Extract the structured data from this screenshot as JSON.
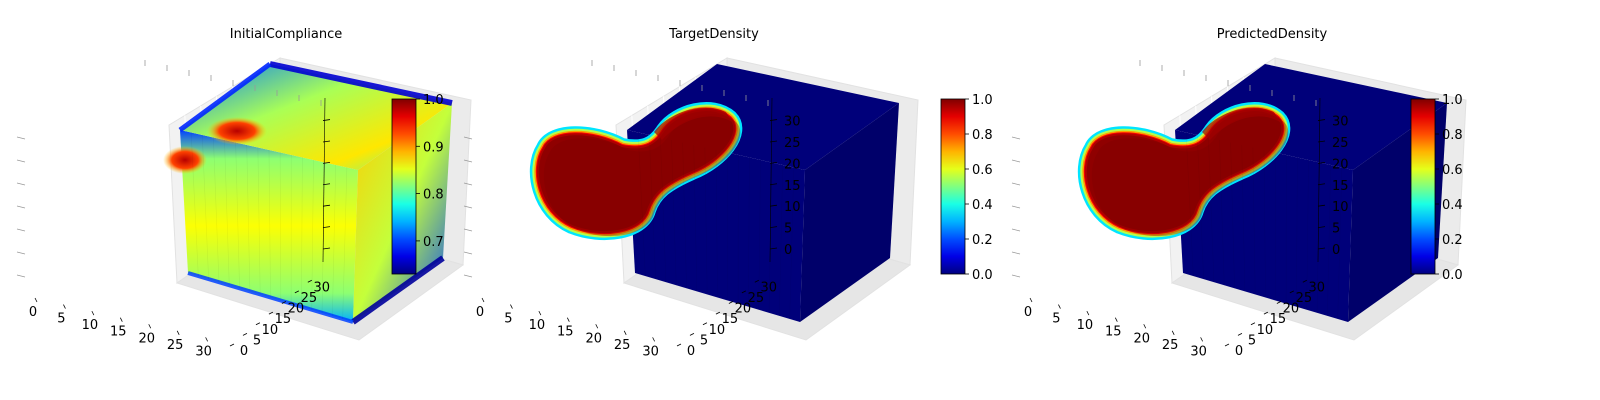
{
  "chart_data": [
    {
      "type": "voxel-cube",
      "title": "InitialCompliance",
      "field": "compliance",
      "axes": {
        "x_ticks": [
          "0",
          "5",
          "10",
          "15",
          "20",
          "25",
          "30"
        ],
        "y_ticks": [
          "0",
          "5",
          "10",
          "15",
          "20",
          "25",
          "30"
        ],
        "z_ticks": [],
        "range": [
          0,
          32
        ]
      },
      "colorbar": {
        "colormap": "jet",
        "min": 0.63,
        "max": 1.0,
        "ticks": [
          "0.7",
          "0.8",
          "0.9",
          "1.0"
        ],
        "tick_values": [
          0.7,
          0.8,
          0.9,
          1.0
        ]
      }
    },
    {
      "type": "voxel-cube",
      "title": "TargetDensity",
      "field": "density",
      "axes": {
        "x_ticks": [
          "0",
          "5",
          "10",
          "15",
          "20",
          "25",
          "30"
        ],
        "y_ticks": [
          "0",
          "5",
          "10",
          "15",
          "20",
          "25",
          "30"
        ],
        "z_ticks": [
          "0",
          "5",
          "10",
          "15",
          "20",
          "25",
          "30"
        ],
        "range": [
          0,
          32
        ]
      },
      "colorbar": {
        "colormap": "jet",
        "min": 0.0,
        "max": 1.0,
        "ticks": [
          "0.0",
          "0.2",
          "0.4",
          "0.6",
          "0.8",
          "1.0"
        ],
        "tick_values": [
          0.0,
          0.2,
          0.4,
          0.6,
          0.8,
          1.0
        ]
      }
    },
    {
      "type": "voxel-cube",
      "title": "PredictedDensity",
      "field": "density",
      "axes": {
        "x_ticks": [
          "0",
          "5",
          "10",
          "15",
          "20",
          "25",
          "30"
        ],
        "y_ticks": [
          "0",
          "5",
          "10",
          "15",
          "20",
          "25",
          "30"
        ],
        "z_ticks": [
          "0",
          "5",
          "10",
          "15",
          "20",
          "25",
          "30"
        ],
        "range": [
          0,
          32
        ]
      },
      "colorbar": {
        "colormap": "jet",
        "min": 0.0,
        "max": 1.0,
        "ticks": [
          "0.0",
          "0.2",
          "0.4",
          "0.6",
          "0.8",
          "1.0"
        ],
        "tick_values": [
          0.0,
          0.2,
          0.4,
          0.6,
          0.8,
          1.0
        ]
      }
    }
  ]
}
